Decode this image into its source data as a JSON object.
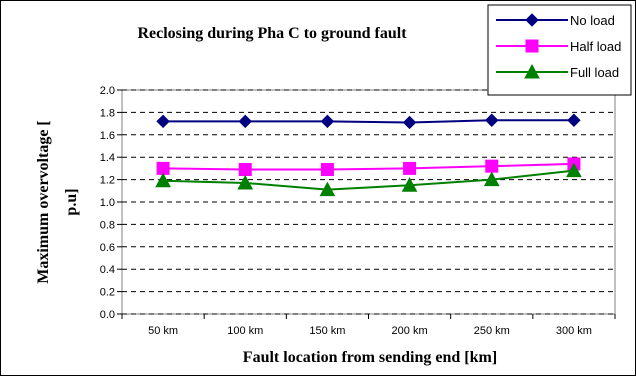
{
  "chart_data": {
    "type": "line",
    "title": "Reclosing during Pha C to ground fault",
    "xlabel": "Fault location from sending end [km]",
    "ylabel_lines": [
      "Maximum overvoltage [",
      "p.u]"
    ],
    "categories": [
      "50 km",
      "100 km",
      "150 km",
      "200 km",
      "250 km",
      "300 km"
    ],
    "ylim": [
      0.0,
      2.0
    ],
    "yticks": [
      "0.0",
      "0.2",
      "0.4",
      "0.6",
      "0.8",
      "1.0",
      "1.2",
      "1.4",
      "1.6",
      "1.8",
      "2.0"
    ],
    "grid": true,
    "legend_position": "top-right",
    "series": [
      {
        "name": "No load",
        "color": "#000080",
        "marker": "diamond",
        "values": [
          1.72,
          1.72,
          1.72,
          1.71,
          1.73,
          1.73
        ]
      },
      {
        "name": "Half load",
        "color": "#FF00FF",
        "marker": "square",
        "values": [
          1.3,
          1.29,
          1.29,
          1.3,
          1.32,
          1.34
        ]
      },
      {
        "name": "Full load",
        "color": "#008000",
        "marker": "triangle",
        "values": [
          1.19,
          1.17,
          1.11,
          1.15,
          1.2,
          1.28
        ]
      }
    ]
  }
}
